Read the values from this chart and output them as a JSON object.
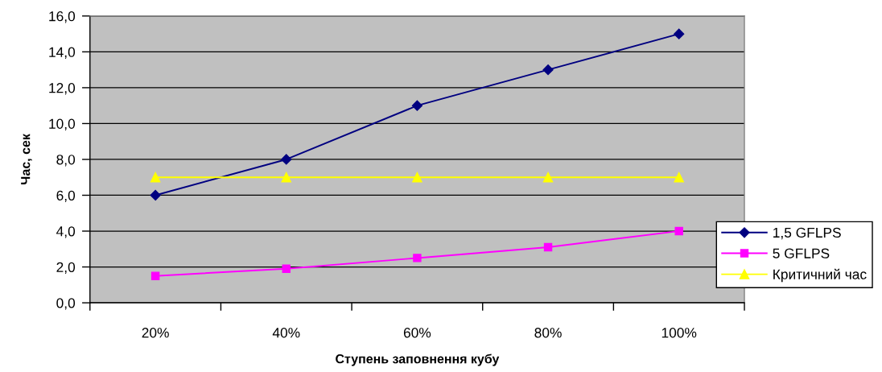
{
  "chart_data": {
    "type": "line",
    "xlabel": "Ступень заповнення кубу",
    "ylabel": "Час, сек",
    "categories": [
      "20%",
      "40%",
      "60%",
      "80%",
      "100%"
    ],
    "series": [
      {
        "name": "1,5 GFLPS",
        "color": "#000080",
        "marker": "diamond",
        "values": [
          6.0,
          8.0,
          11.0,
          13.0,
          15.0
        ]
      },
      {
        "name": "5 GFLPS",
        "color": "#ff00ff",
        "marker": "square",
        "values": [
          1.5,
          1.9,
          2.5,
          3.1,
          4.0
        ]
      },
      {
        "name": "Критичний час",
        "color": "#ffff00",
        "marker": "triangle",
        "values": [
          7.0,
          7.0,
          7.0,
          7.0,
          7.0
        ]
      }
    ],
    "ylim": [
      0,
      16
    ],
    "yticks": [
      {
        "value": 0,
        "label": "0,0"
      },
      {
        "value": 2,
        "label": "2,0"
      },
      {
        "value": 4,
        "label": "4,0"
      },
      {
        "value": 6,
        "label": "6,0"
      },
      {
        "value": 8,
        "label": "8,0"
      },
      {
        "value": 10,
        "label": "10,0"
      },
      {
        "value": 12,
        "label": "12,0"
      },
      {
        "value": 14,
        "label": "14,0"
      },
      {
        "value": 16,
        "label": "16,0"
      }
    ],
    "grid": "y",
    "legend": "bottom right",
    "line_style": "solid"
  }
}
